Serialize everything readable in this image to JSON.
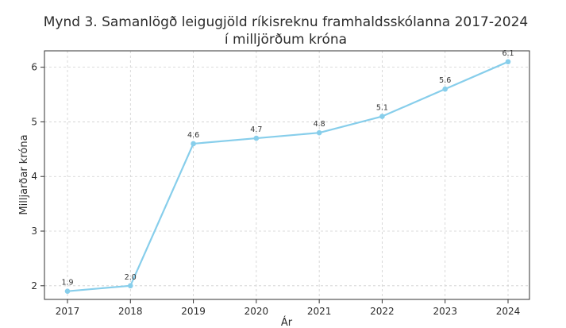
{
  "chart_data": {
    "type": "line",
    "title_line1": "Mynd 3. Samanlögð leigugjöld ríkisreknu framhaldsskólanna 2017-2024",
    "title_line2": "í milljörðum króna",
    "xlabel": "Ár",
    "ylabel": "Milljarðar króna",
    "x": [
      "2017",
      "2018",
      "2019",
      "2020",
      "2021",
      "2022",
      "2023",
      "2024"
    ],
    "series": [
      {
        "values": [
          1.9,
          2.0,
          4.6,
          4.7,
          4.8,
          5.1,
          5.6,
          6.1
        ]
      }
    ],
    "data_labels": [
      "1.9",
      "2.0",
      "4.6",
      "4.7",
      "4.8",
      "5.1",
      "5.6",
      "6.1"
    ],
    "yticks": [
      2,
      3,
      4,
      5,
      6
    ],
    "ylim": [
      1.75,
      6.3
    ],
    "grid": true,
    "line_color": "#87CEEB"
  }
}
